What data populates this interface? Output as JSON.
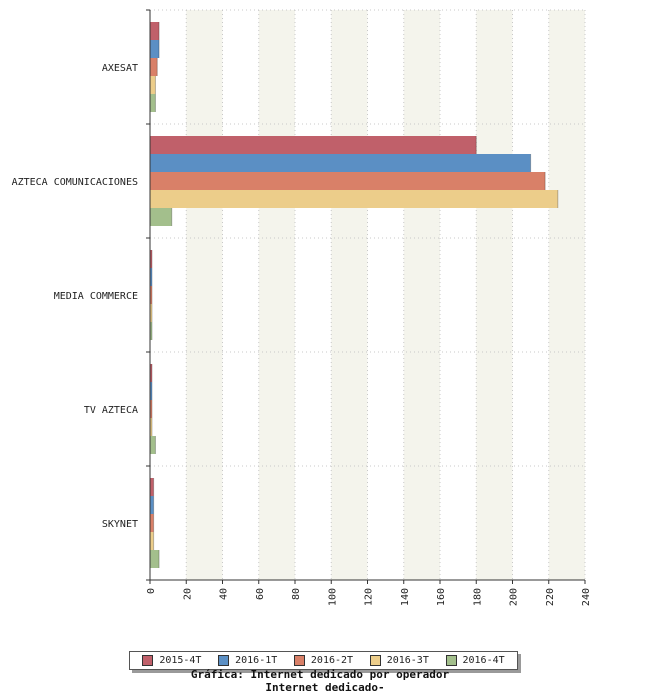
{
  "chart_data": {
    "type": "bar",
    "orientation": "horizontal",
    "title": "Gráfica: Internet dedicado por operador",
    "subtitle": "Internet dedicado-",
    "xlabel": "",
    "ylabel": "",
    "xlim": [
      0,
      240
    ],
    "ticks": [
      0,
      20,
      40,
      60,
      80,
      100,
      120,
      140,
      160,
      180,
      200,
      220,
      240
    ],
    "categories": [
      "AXESAT",
      "AZTECA COMUNICACIONES",
      "MEDIA COMMERCE",
      "TV AZTECA",
      "SKYNET"
    ],
    "series": [
      {
        "name": "2015-4T",
        "color": "#c0606a",
        "values": [
          5,
          180,
          1,
          1,
          2
        ]
      },
      {
        "name": "2016-1T",
        "color": "#5b8fc4",
        "values": [
          5,
          210,
          1,
          1,
          2
        ]
      },
      {
        "name": "2016-2T",
        "color": "#d98068",
        "values": [
          4,
          218,
          1,
          1,
          2
        ]
      },
      {
        "name": "2016-3T",
        "color": "#eccd8a",
        "values": [
          3,
          225,
          1,
          1,
          2
        ]
      },
      {
        "name": "2016-4T",
        "color": "#a3bf8c",
        "values": [
          3,
          12,
          1,
          3,
          5
        ]
      }
    ],
    "legend_position": "bottom"
  }
}
